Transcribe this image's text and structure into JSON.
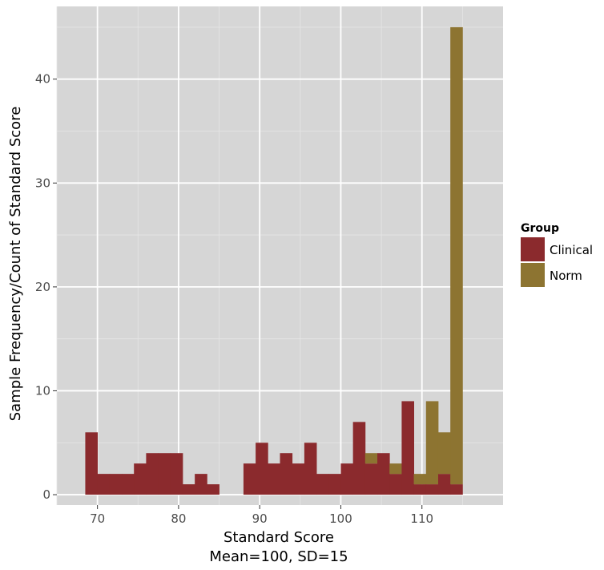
{
  "chart_data": {
    "type": "bar",
    "title": "",
    "xlabel": "Standard Score",
    "xlabel_sub": "Mean=100, SD=15",
    "ylabel": "Sample Frequency/Count of Standard Score",
    "xlim": [
      65,
      120
    ],
    "ylim": [
      -1,
      47
    ],
    "x_ticks": [
      70,
      80,
      90,
      100,
      110
    ],
    "y_ticks": [
      0,
      10,
      20,
      30,
      40
    ],
    "bin_width": 1.5,
    "bin_starts": [
      68.5,
      70,
      71.5,
      73,
      74.5,
      76,
      77.5,
      79,
      80.5,
      82,
      83.5,
      85,
      86.5,
      88,
      89.5,
      91,
      92.5,
      94,
      95.5,
      97,
      98.5,
      100,
      101.5,
      103,
      104.5,
      106,
      107.5,
      109,
      110.5,
      112,
      113.5
    ],
    "stacked": true,
    "grid": true,
    "legend": {
      "title": "Group",
      "position": "right",
      "entries": [
        "Clinical",
        "Norm"
      ]
    },
    "series": [
      {
        "name": "Clinical",
        "color": "#8B2A2D",
        "values": [
          6,
          2,
          2,
          2,
          3,
          4,
          4,
          4,
          1,
          2,
          1,
          0,
          0,
          3,
          5,
          3,
          4,
          3,
          5,
          2,
          2,
          3,
          7,
          3,
          4,
          2,
          9,
          1,
          1,
          2,
          1
        ]
      },
      {
        "name": "Norm",
        "color": "#8D7431",
        "values": [
          0,
          0,
          0,
          0,
          0,
          0,
          0,
          0,
          0,
          0,
          0,
          0,
          0,
          0,
          0,
          0,
          0,
          0,
          0,
          0,
          0,
          0,
          0,
          1,
          0,
          1,
          0,
          1,
          8,
          4,
          44
        ]
      }
    ]
  }
}
